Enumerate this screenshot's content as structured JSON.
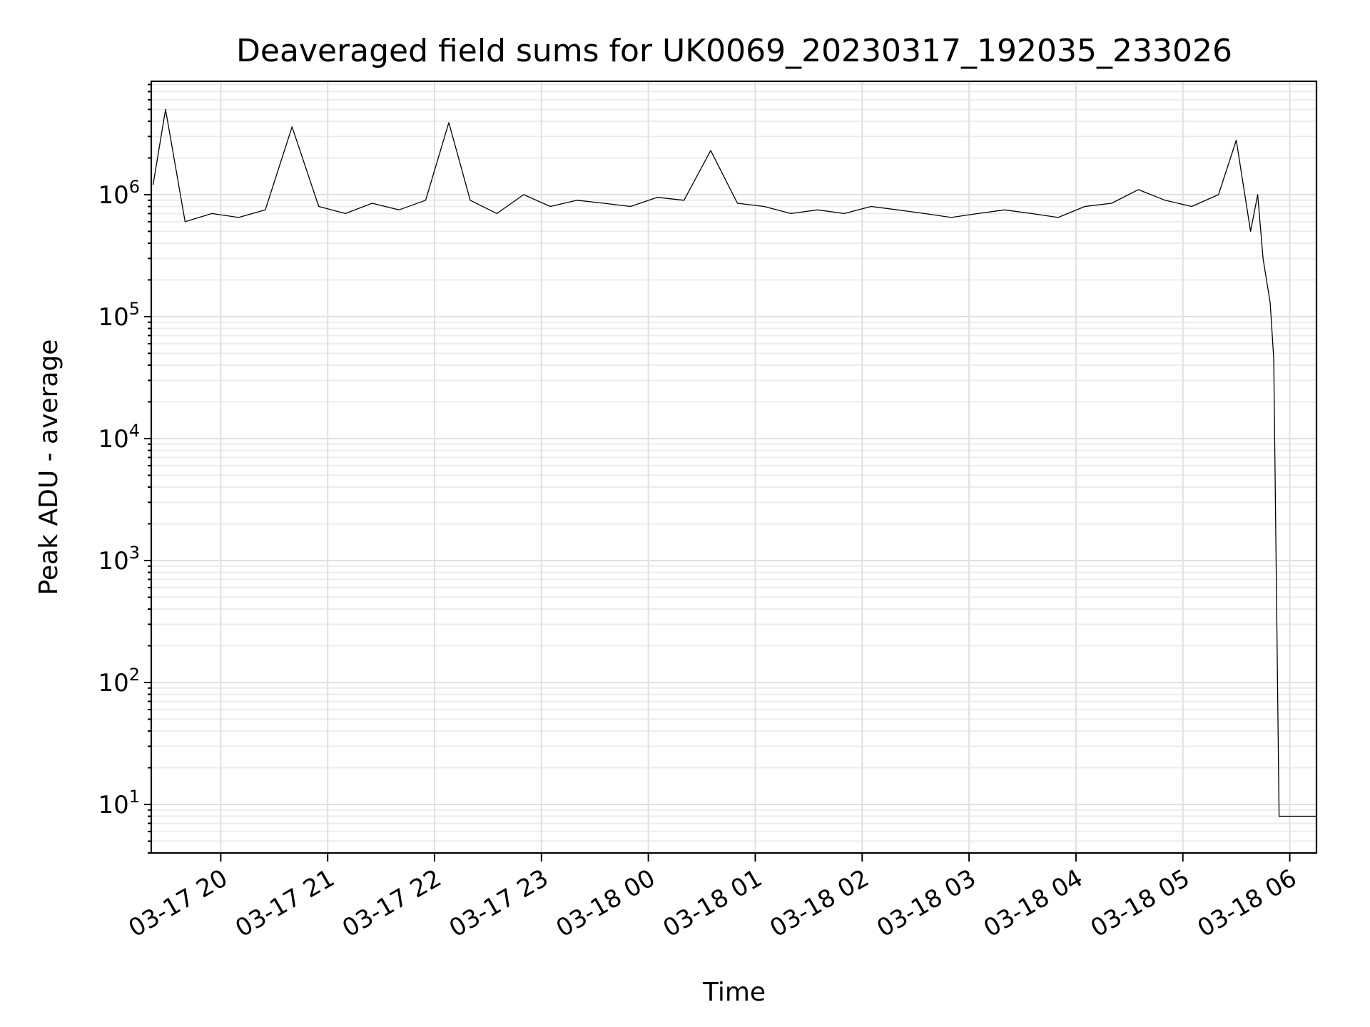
{
  "chart_data": {
    "type": "line",
    "title": "Deaveraged field sums for UK0069_20230317_192035_233026",
    "xlabel": "Time",
    "ylabel": "Peak ADU - average",
    "yscale": "log",
    "grid": true,
    "xlim": [
      "2023-03-17 19:21",
      "2023-03-18 06:15"
    ],
    "ylim": [
      4,
      8500000
    ],
    "x_ticks": [
      "03-17 20",
      "03-17 21",
      "03-17 22",
      "03-17 23",
      "03-18 00",
      "03-18 01",
      "03-18 02",
      "03-18 03",
      "03-18 04",
      "03-18 05",
      "03-18 06"
    ],
    "y_ticks": [
      {
        "value": 10,
        "base": "10",
        "exp": "1"
      },
      {
        "value": 100,
        "base": "10",
        "exp": "2"
      },
      {
        "value": 1000,
        "base": "10",
        "exp": "3"
      },
      {
        "value": 10000,
        "base": "10",
        "exp": "4"
      },
      {
        "value": 100000,
        "base": "10",
        "exp": "5"
      },
      {
        "value": 1000000,
        "base": "10",
        "exp": "6"
      }
    ],
    "series": [
      {
        "color": "#000000",
        "x": [
          "2023-03-17 19:22",
          "2023-03-17 19:29",
          "2023-03-17 19:40",
          "2023-03-17 19:55",
          "2023-03-17 20:10",
          "2023-03-17 20:25",
          "2023-03-17 20:40",
          "2023-03-17 20:55",
          "2023-03-17 21:10",
          "2023-03-17 21:25",
          "2023-03-17 21:40",
          "2023-03-17 21:55",
          "2023-03-17 22:08",
          "2023-03-17 22:20",
          "2023-03-17 22:35",
          "2023-03-17 22:50",
          "2023-03-17 23:05",
          "2023-03-17 23:20",
          "2023-03-17 23:35",
          "2023-03-17 23:50",
          "2023-03-18 00:05",
          "2023-03-18 00:20",
          "2023-03-18 00:35",
          "2023-03-18 00:50",
          "2023-03-18 01:05",
          "2023-03-18 01:20",
          "2023-03-18 01:35",
          "2023-03-18 01:50",
          "2023-03-18 02:05",
          "2023-03-18 02:20",
          "2023-03-18 02:35",
          "2023-03-18 02:50",
          "2023-03-18 03:05",
          "2023-03-18 03:20",
          "2023-03-18 03:35",
          "2023-03-18 03:50",
          "2023-03-18 04:05",
          "2023-03-18 04:20",
          "2023-03-18 04:35",
          "2023-03-18 04:50",
          "2023-03-18 05:05",
          "2023-03-18 05:20",
          "2023-03-18 05:30",
          "2023-03-18 05:38",
          "2023-03-18 05:42",
          "2023-03-18 05:45",
          "2023-03-18 05:49",
          "2023-03-18 05:51",
          "2023-03-18 05:54",
          "2023-03-18 06:00",
          "2023-03-18 06:15"
        ],
        "y": [
          1200000,
          5000000,
          600000,
          700000,
          650000,
          750000,
          3600000,
          800000,
          700000,
          850000,
          750000,
          900000,
          3900000,
          900000,
          700000,
          1000000,
          800000,
          900000,
          850000,
          800000,
          950000,
          900000,
          2300000,
          850000,
          800000,
          700000,
          750000,
          700000,
          800000,
          750000,
          700000,
          650000,
          700000,
          750000,
          700000,
          650000,
          800000,
          850000,
          1100000,
          900000,
          800000,
          1000000,
          2800000,
          500000,
          1000000,
          300000,
          130000,
          45000,
          8,
          8,
          8
        ]
      }
    ]
  }
}
